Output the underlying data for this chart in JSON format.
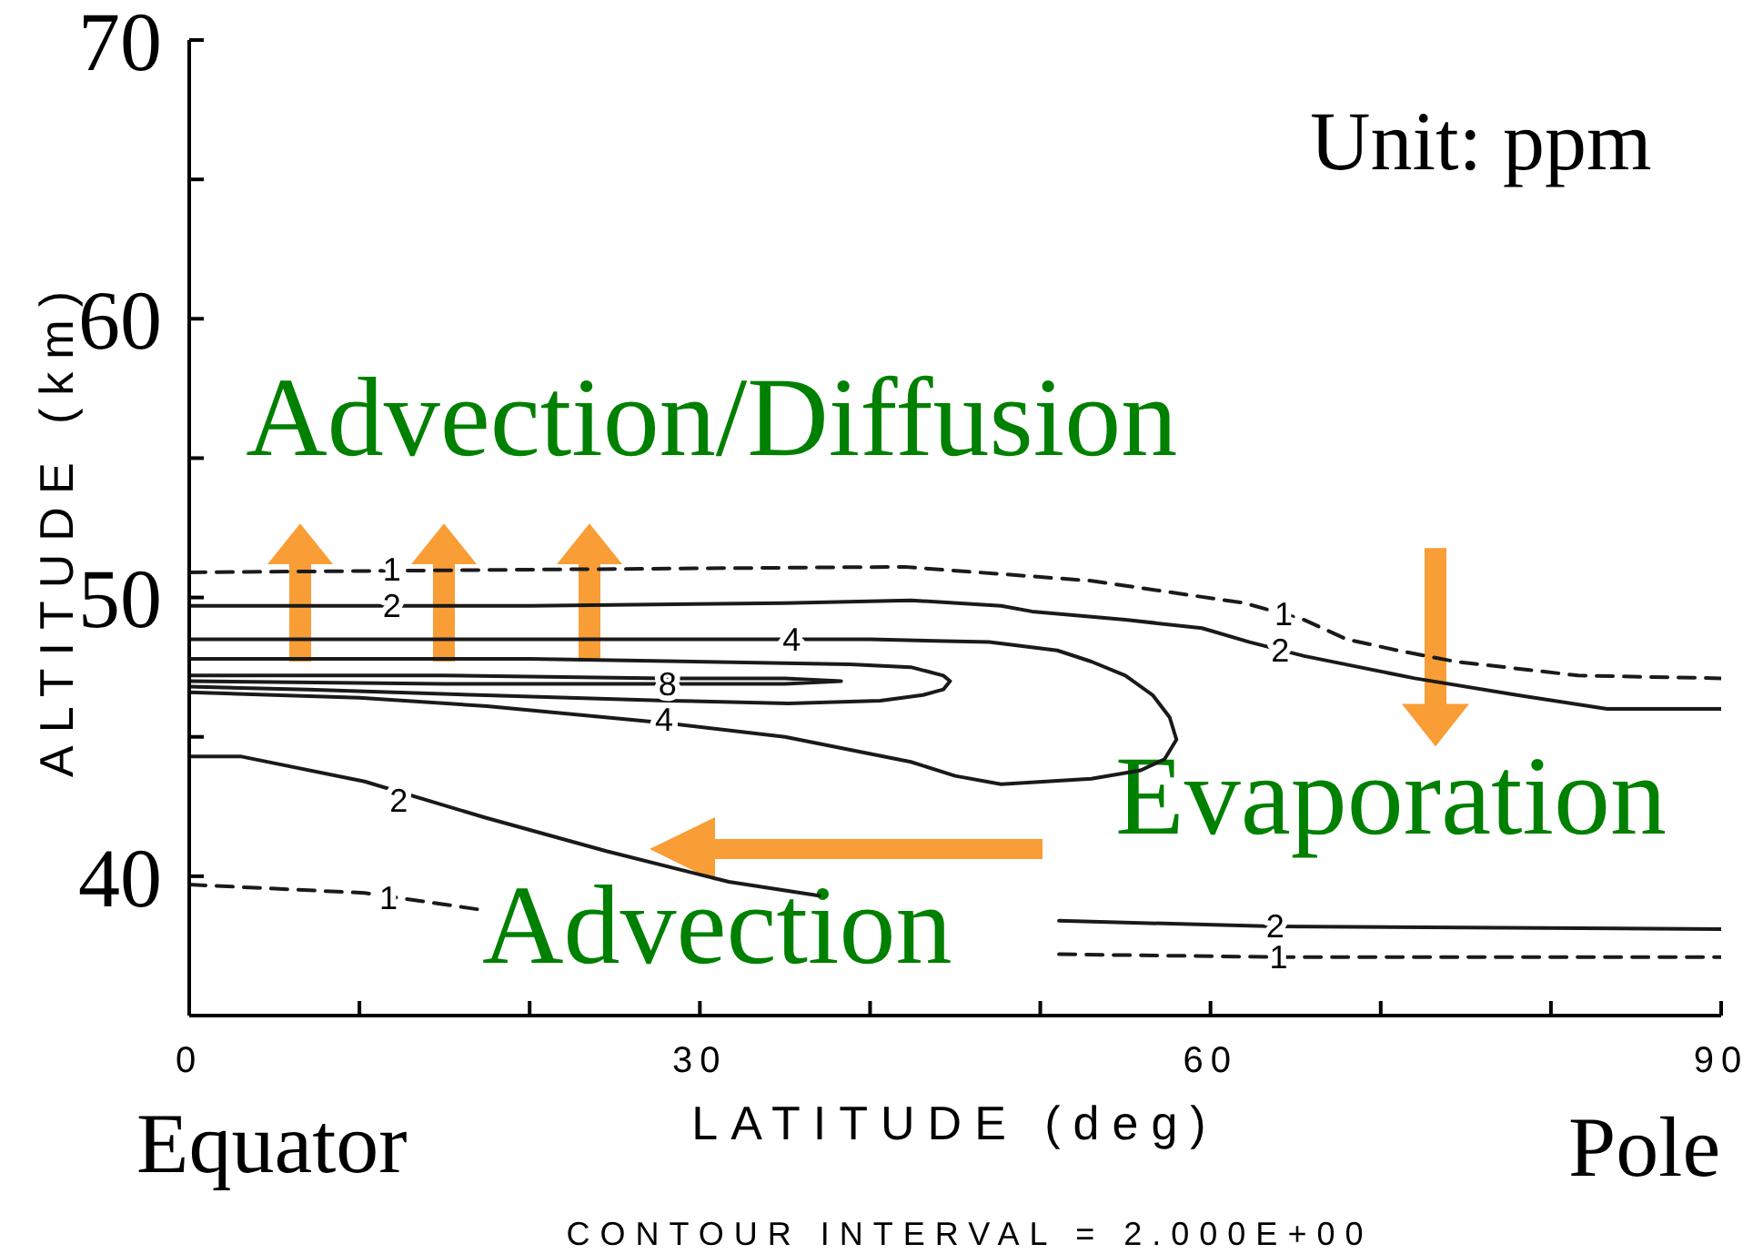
{
  "chart_data": {
    "type": "line",
    "xlabel": "LATITUDE (deg)",
    "ylabel": "ALTITUDE (km)",
    "xlim": [
      0,
      90
    ],
    "xticks": [
      0,
      {
        "value": 10,
        "label": null
      },
      {
        "value": 20,
        "label": null
      },
      30,
      {
        "value": 40,
        "label": null
      },
      {
        "value": 50,
        "label": null
      },
      60,
      {
        "value": 70,
        "label": null
      },
      {
        "value": 80,
        "label": null
      },
      90
    ],
    "ylim": [
      35,
      70
    ],
    "yticks": [
      40,
      {
        "value": 45,
        "label": null
      },
      50,
      {
        "value": 55,
        "label": null
      },
      60,
      {
        "value": 65,
        "label": null
      },
      70
    ],
    "series": [
      {
        "color": "#1a1a1a",
        "line_style": "dashed",
        "x": [
          0,
          20,
          42,
          53,
          62,
          65.5,
          68,
          71,
          74.4,
          81.6,
          90
        ],
        "values": [
          50.9,
          51.0,
          51.1,
          50.6,
          49.8,
          49.2,
          48.5,
          48.1,
          47.7,
          47.2,
          47.1
        ]
      },
      {
        "color": "#1a1a1a",
        "line_style": "solid",
        "x": [
          0,
          20,
          35,
          42.4,
          47.7,
          49.5,
          55,
          59.5,
          62.3,
          65.5,
          72,
          78,
          83.3,
          90
        ],
        "values": [
          49.7,
          49.7,
          49.8,
          49.9,
          49.7,
          49.5,
          49.2,
          48.9,
          48.4,
          47.9,
          47.1,
          46.5,
          46.0,
          46.0
        ]
      },
      {
        "color": "#1a1a1a",
        "line_style": "solid",
        "x": [
          0,
          20,
          40,
          47,
          51,
          53,
          55,
          56.6,
          57.6,
          58,
          57.3,
          55.9,
          53,
          47.7,
          45,
          42.4,
          35,
          28,
          17.5,
          10,
          0
        ],
        "values": [
          48.5,
          48.5,
          48.5,
          48.4,
          48.1,
          47.7,
          47.2,
          46.5,
          45.7,
          44.9,
          44.2,
          43.8,
          43.5,
          43.3,
          43.6,
          44.1,
          45.0,
          45.5,
          46.1,
          46.4,
          46.6
        ]
      },
      {
        "color": "#1a1a1a",
        "line_style": "solid",
        "x": [
          0,
          20,
          38.8,
          42.4,
          44.3,
          44.7,
          44.3,
          43.1,
          40.6,
          35.2,
          28.1,
          17,
          7,
          0
        ],
        "values": [
          47.8,
          47.8,
          47.6,
          47.5,
          47.2,
          47.0,
          46.7,
          46.5,
          46.3,
          46.2,
          46.3,
          46.5,
          46.7,
          46.8
        ]
      },
      {
        "color": "#1a1a1a",
        "line_style": "solid",
        "x": [
          0,
          15,
          28,
          35,
          38.3,
          35,
          28,
          15,
          0
        ],
        "values": [
          47.2,
          47.2,
          47.1,
          47.1,
          47.0,
          46.9,
          46.9,
          46.9,
          47.0
        ]
      },
      {
        "color": "#1a1a1a",
        "line_style": "solid",
        "x": [
          0,
          3,
          10.3,
          17.4,
          24.5,
          31.7,
          37,
          44,
          51.1,
          63.7,
          90
        ],
        "values": [
          44.3,
          44.3,
          43.4,
          42.1,
          40.9,
          39.8,
          39.3,
          null,
          38.4,
          38.2,
          38.1
        ]
      },
      {
        "color": "#1a1a1a",
        "line_style": "dashed",
        "x": [
          0,
          10.3,
          17.1,
          34,
          51.1,
          64,
          90
        ],
        "values": [
          39.7,
          39.4,
          38.8,
          null,
          37.2,
          37.1,
          37.1
        ]
      }
    ],
    "annotations": [
      "Unit: ppm",
      {
        "text": "Advection/Diffusion",
        "x": 20,
        "y": 51.0
      },
      "Evaporation",
      "Advection",
      "Equator",
      "Pole",
      "CONTOUR INTERVAL = 2.000E+00",
      {
        "text": "1",
        "x": 11.9,
        "y": 51.0
      },
      {
        "text": "2",
        "x": 11.9,
        "y": 49.7
      },
      {
        "text": "4",
        "x": 35.4,
        "y": 48.5
      },
      {
        "text": "8",
        "x": 28.1,
        "y": 46.9
      },
      {
        "text": "4",
        "x": 27.9,
        "y": 45.6
      },
      {
        "text": "1",
        "x": 64.3,
        "y": 49.4
      },
      {
        "text": "2",
        "x": 64.1,
        "y": 48.1
      },
      {
        "text": "2",
        "x": 12.3,
        "y": 42.7
      },
      {
        "text": "1",
        "x": 11.7,
        "y": 39.2
      },
      {
        "text": "2",
        "x": 63.8,
        "y": 38.2
      },
      {
        "text": "1",
        "x": 64.0,
        "y": 37.1
      }
    ]
  }
}
